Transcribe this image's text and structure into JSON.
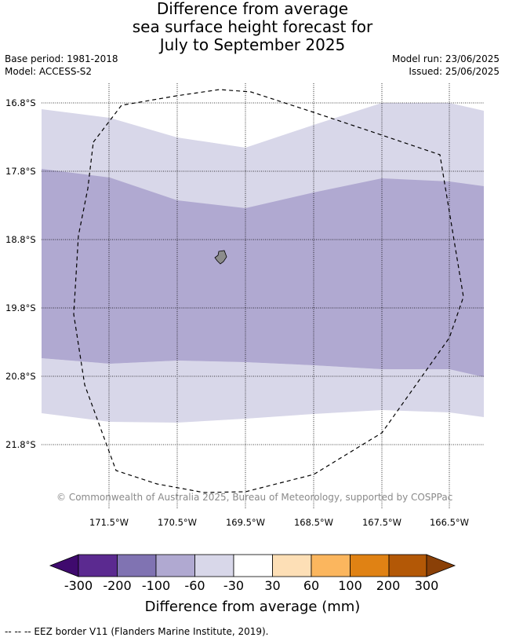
{
  "title": {
    "line1": "Difference from average",
    "line2": "sea surface height forecast for",
    "line3": "July to September 2025"
  },
  "meta_left": {
    "base_period": "Base period: 1981-2018",
    "model": "Model: ACCESS-S2"
  },
  "meta_right": {
    "model_run": "Model run: 23/06/2025",
    "issued": "Issued: 25/06/2025"
  },
  "map": {
    "latitude_labels": [
      "16.8°S",
      "17.8°S",
      "18.8°S",
      "19.8°S",
      "20.8°S",
      "21.8°S"
    ],
    "longitude_labels": [
      "171.5°W",
      "170.5°W",
      "169.5°W",
      "168.5°W",
      "167.5°W",
      "166.5°W"
    ],
    "copyright": "© Commonwealth of Australia 2025, Bureau of Meteorology, supported by COSPPac",
    "colors": {
      "band_-100_-60": "#b0a9d1",
      "band_-60_-30": "#d8d7e9",
      "band_-30_30": "#ffffff",
      "island": "#8c8c8c",
      "eez_border": "#000000"
    }
  },
  "colorbar": {
    "ticks": [
      "-300",
      "-200",
      "-100",
      "-60",
      "-30",
      "30",
      "60",
      "100",
      "200",
      "300"
    ],
    "colors": [
      "#3f0a6e",
      "#5b2a90",
      "#8073b2",
      "#b0a9d1",
      "#d8d7e9",
      "#ffffff",
      "#fddfb6",
      "#fbb65e",
      "#e08214",
      "#b35806",
      "#8a4007"
    ],
    "label": "Difference from average (mm)"
  },
  "footer": "--  --  -- EEZ border V11 (Flanders Marine Institute, 2019)."
}
